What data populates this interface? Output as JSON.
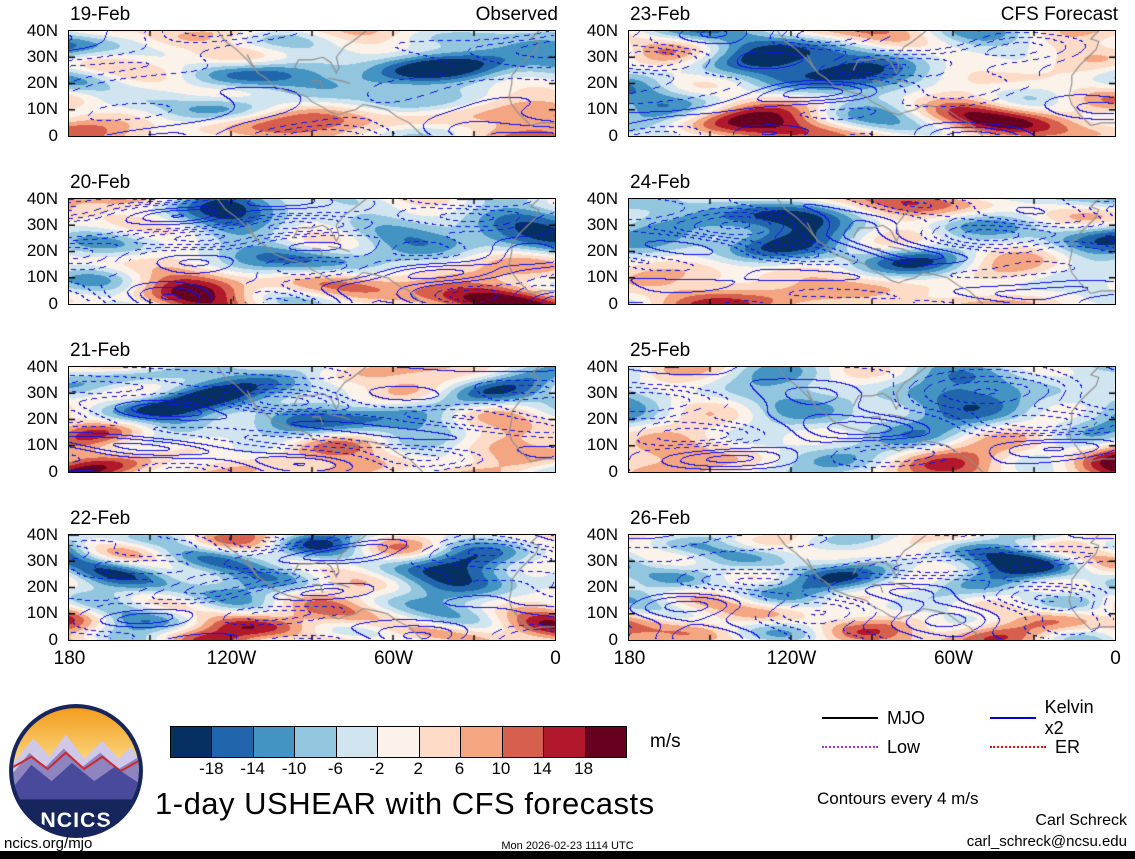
{
  "title": "1-day USHEAR with CFS forecasts",
  "columns": {
    "left_heading": "Observed",
    "right_heading": "CFS Forecast"
  },
  "panels": [
    {
      "date": "19-Feb",
      "corner": "Observed"
    },
    {
      "date": "20-Feb",
      "corner": ""
    },
    {
      "date": "21-Feb",
      "corner": ""
    },
    {
      "date": "22-Feb",
      "corner": ""
    },
    {
      "date": "23-Feb",
      "corner": "CFS Forecast"
    },
    {
      "date": "24-Feb",
      "corner": ""
    },
    {
      "date": "25-Feb",
      "corner": ""
    },
    {
      "date": "26-Feb",
      "corner": ""
    }
  ],
  "axes": {
    "y_ticks": [
      "40N",
      "30N",
      "20N",
      "10N",
      "0"
    ],
    "x_ticks": [
      "180",
      "120W",
      "60W",
      "0"
    ]
  },
  "colorbar": {
    "ticks": [
      "-18",
      "-14",
      "-10",
      "-6",
      "-2",
      "2",
      "6",
      "10",
      "14",
      "18"
    ],
    "colors": [
      "#053061",
      "#2166ac",
      "#4393c3",
      "#92c5de",
      "#d1e5f0",
      "#fbf2e9",
      "#fddbc7",
      "#f4a582",
      "#d6604d",
      "#b2182b",
      "#67001f"
    ],
    "units": "m/s"
  },
  "legend": {
    "items": [
      {
        "label": "MJO",
        "color": "#000000",
        "style": "solid"
      },
      {
        "label": "Kelvin x2",
        "color": "#0000dd",
        "style": "solid"
      },
      {
        "label": "Low",
        "color": "#aa33cc",
        "style": "dotted"
      },
      {
        "label": "ER",
        "color": "#dd1111",
        "style": "dotted"
      }
    ],
    "note": "Contours every 4 m/s"
  },
  "logo": {
    "text": "NCICS"
  },
  "footer": {
    "site": "ncics.org/mjo",
    "timestamp": "Mon 2026-02-23 1114 UTC",
    "credit_name": "Carl Schreck",
    "credit_email": "carl_schreck@ncsu.edu"
  },
  "chart_data": {
    "type": "heatmap",
    "subtype": "filled-contour longitude-latitude maps in a 2x4 grid with overlaid wave contours",
    "title": "1-day USHEAR with CFS forecasts",
    "panels": [
      {
        "date": "19-Feb",
        "group": "Observed"
      },
      {
        "date": "20-Feb",
        "group": "Observed"
      },
      {
        "date": "21-Feb",
        "group": "Observed"
      },
      {
        "date": "22-Feb",
        "group": "Observed"
      },
      {
        "date": "23-Feb",
        "group": "CFS Forecast"
      },
      {
        "date": "24-Feb",
        "group": "CFS Forecast"
      },
      {
        "date": "25-Feb",
        "group": "CFS Forecast"
      },
      {
        "date": "26-Feb",
        "group": "CFS Forecast"
      }
    ],
    "x_axis": {
      "ticks": [
        "180",
        "120W",
        "60W",
        "0"
      ],
      "range": "180W to 0 longitude"
    },
    "y_axis": {
      "ticks": [
        "40N",
        "30N",
        "20N",
        "10N",
        "0"
      ],
      "range": "0 to 40N latitude"
    },
    "fill_variable": "1-day USHEAR",
    "units": "m/s",
    "fill_levels": [
      -18,
      -14,
      -10,
      -6,
      -2,
      2,
      6,
      10,
      14,
      18
    ],
    "contour_interval": 4,
    "contour_overlays": [
      "MJO",
      "Kelvin x2",
      "Low",
      "ER"
    ],
    "legend_position": "bottom-right",
    "grid": false
  }
}
